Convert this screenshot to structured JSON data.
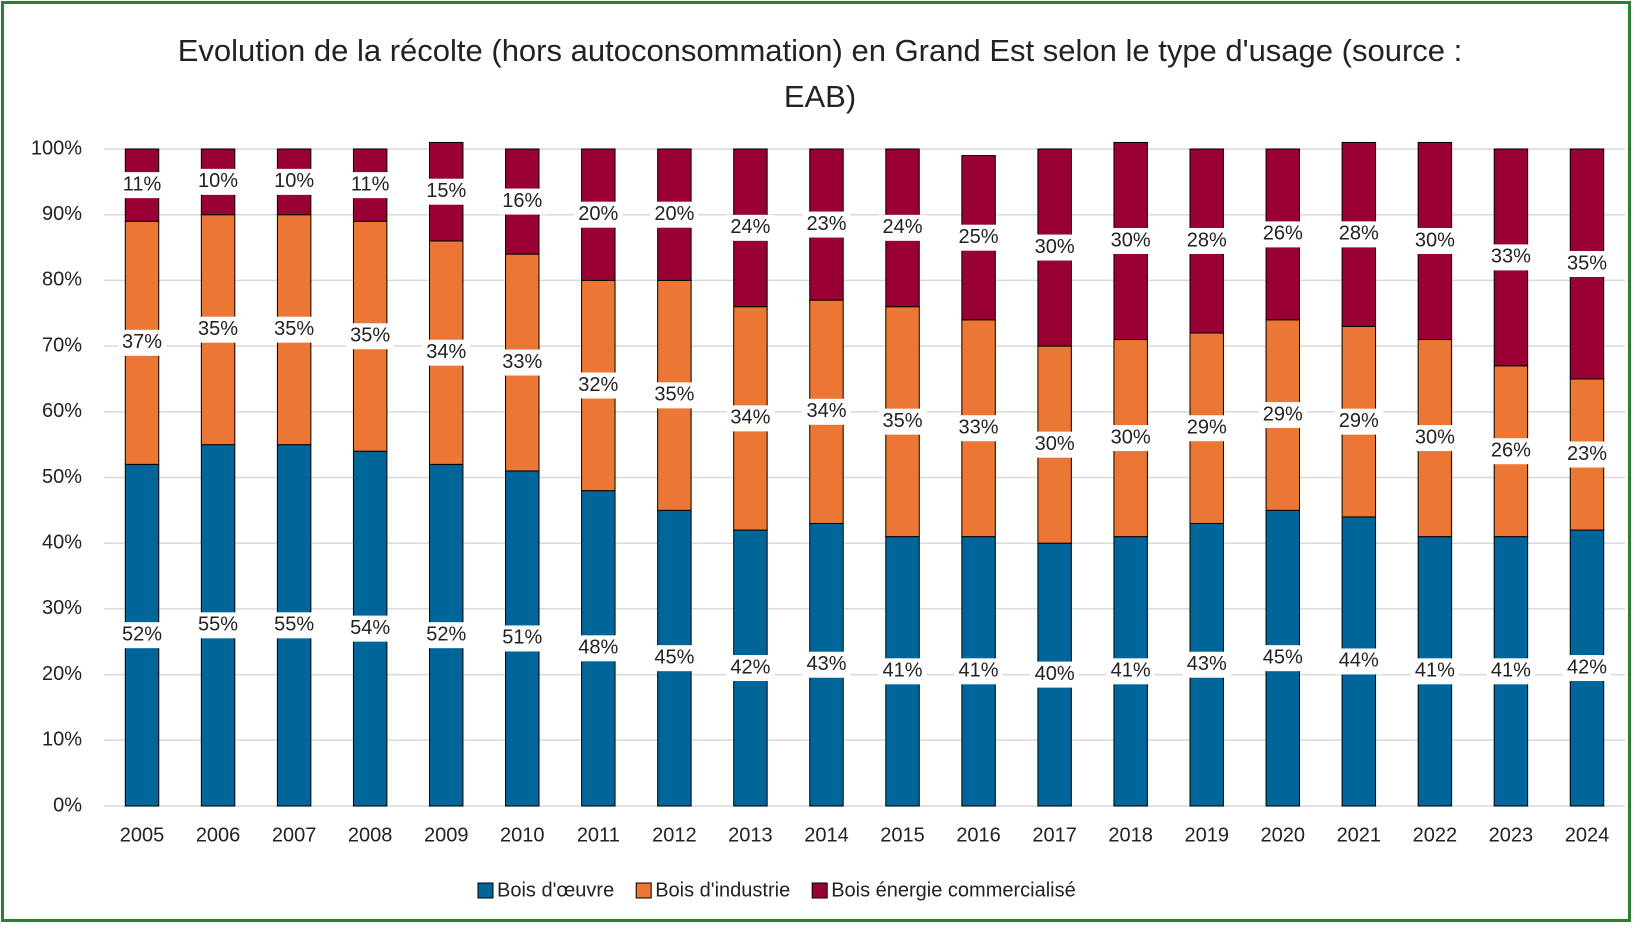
{
  "chart_data": {
    "type": "stacked_bar",
    "title": "Evolution de la récolte (hors autoconsommation) en Grand Est selon le type d'usage (source : EAB)",
    "categories": [
      "2005",
      "2006",
      "2007",
      "2008",
      "2009",
      "2010",
      "2011",
      "2012",
      "2013",
      "2014",
      "2015",
      "2016",
      "2017",
      "2018",
      "2019",
      "2020",
      "2021",
      "2022",
      "2023",
      "2024"
    ],
    "series": [
      {
        "name": "Bois d'œuvre",
        "color": "#00669a",
        "values": [
          52,
          55,
          55,
          54,
          52,
          51,
          48,
          45,
          42,
          43,
          41,
          41,
          40,
          41,
          43,
          45,
          44,
          41,
          41,
          42
        ],
        "value_labels": [
          "52%",
          "55%",
          "55%",
          "54%",
          "52%",
          "51%",
          "48%",
          "45%",
          "42%",
          "43%",
          "41%",
          "41%",
          "40%",
          "41%",
          "43%",
          "45%",
          "44%",
          "41%",
          "41%",
          "42%"
        ]
      },
      {
        "name": "Bois d'industrie",
        "color": "#ec7633",
        "values": [
          37,
          35,
          35,
          35,
          34,
          33,
          32,
          35,
          34,
          34,
          35,
          33,
          30,
          30,
          29,
          29,
          29,
          30,
          26,
          23
        ],
        "value_labels": [
          "37%",
          "35%",
          "35%",
          "35%",
          "34%",
          "33%",
          "32%",
          "35%",
          "34%",
          "34%",
          "35%",
          "33%",
          "30%",
          "30%",
          "29%",
          "29%",
          "29%",
          "30%",
          "26%",
          "23%"
        ]
      },
      {
        "name": "Bois énergie commercialisé",
        "color": "#990033",
        "values": [
          11,
          10,
          10,
          11,
          15,
          16,
          20,
          20,
          24,
          23,
          24,
          25,
          30,
          30,
          28,
          26,
          28,
          30,
          33,
          35
        ],
        "value_labels": [
          "11%",
          "10%",
          "10%",
          "11%",
          "15%",
          "16%",
          "20%",
          "20%",
          "24%",
          "23%",
          "24%",
          "25%",
          "30%",
          "30%",
          "28%",
          "26%",
          "28%",
          "30%",
          "33%",
          "35%"
        ]
      }
    ],
    "ylim": [
      0,
      100
    ],
    "yticks": [
      {
        "value": 0,
        "label": "0%"
      },
      {
        "value": 10,
        "label": "10%"
      },
      {
        "value": 20,
        "label": "20%"
      },
      {
        "value": 30,
        "label": "30%"
      },
      {
        "value": 40,
        "label": "40%"
      },
      {
        "value": 50,
        "label": "50%"
      },
      {
        "value": 60,
        "label": "60%"
      },
      {
        "value": 70,
        "label": "70%"
      },
      {
        "value": 80,
        "label": "80%"
      },
      {
        "value": 90,
        "label": "90%"
      },
      {
        "value": 100,
        "label": "100%"
      }
    ],
    "grid": true,
    "legend": "bottom"
  }
}
